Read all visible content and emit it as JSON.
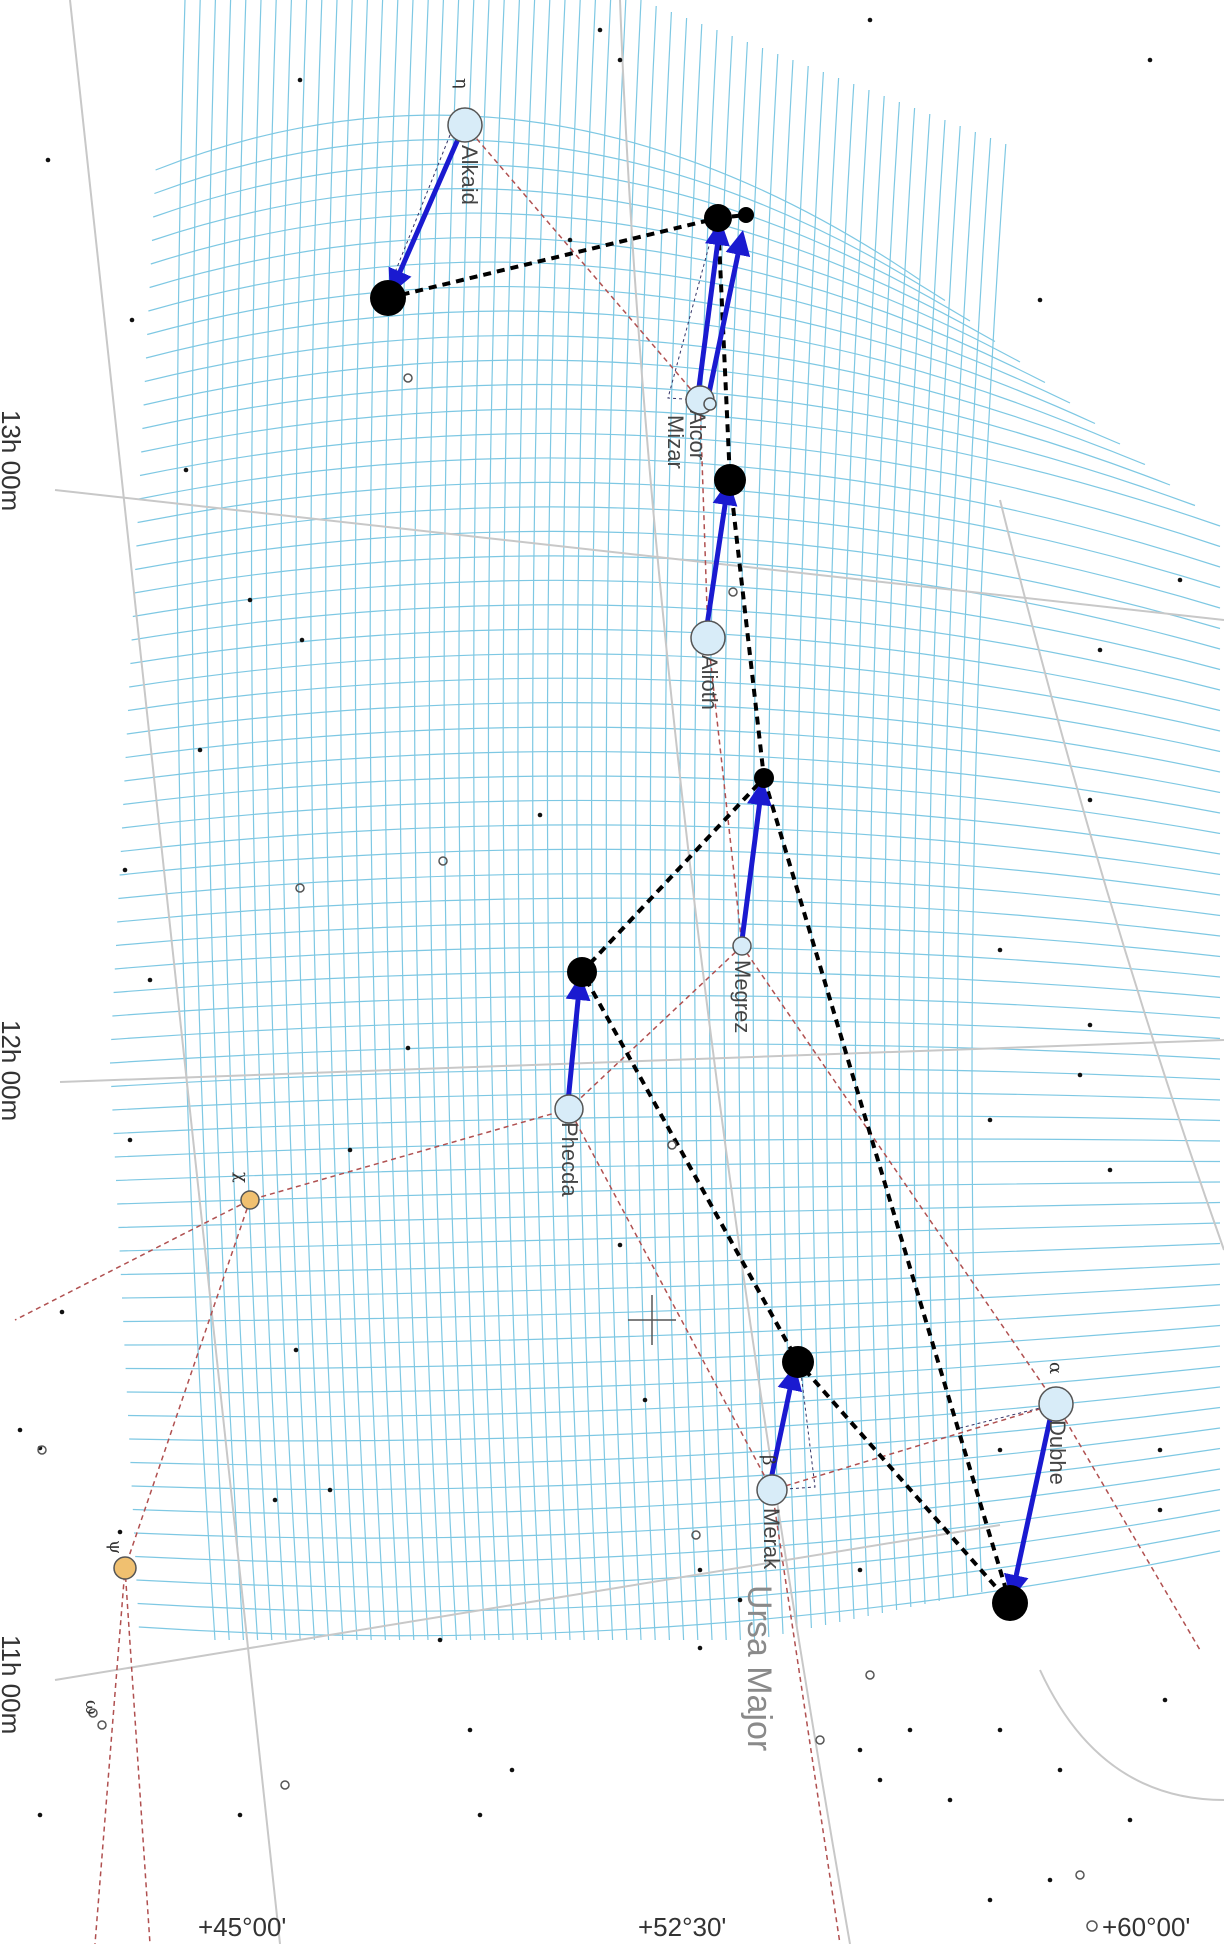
{
  "chart": {
    "constellation": "Ursa Major",
    "ra_labels": [
      "13h 00m",
      "12h 00m",
      "11h 00m"
    ],
    "dec_labels": [
      "+45°00'",
      "+52°30'",
      "+60°00'"
    ],
    "stars": [
      {
        "key": "alkaid",
        "name": "Alkaid",
        "greek": "η"
      },
      {
        "key": "mizar",
        "name": "Mizar",
        "greek": ""
      },
      {
        "key": "alcor",
        "name": "Alcor",
        "greek": ""
      },
      {
        "key": "alioth",
        "name": "Alioth",
        "greek": ""
      },
      {
        "key": "megrez",
        "name": "Megrez",
        "greek": ""
      },
      {
        "key": "phecda",
        "name": "Phecda",
        "greek": ""
      },
      {
        "key": "merak",
        "name": "Merak",
        "greek": "β"
      },
      {
        "key": "dubhe",
        "name": "Dubhe",
        "greek": "α"
      }
    ],
    "other_greek": [
      "χ",
      "ψ",
      "ω"
    ],
    "colors": {
      "grid": "#7ec8e3",
      "coord_lines": "#c8c8c8",
      "constellation_lines": "#b05050",
      "motion_arrows": "#1a1ad0",
      "future_shape": "#000000",
      "star_fill": "#d8ecf8",
      "orange_star": "#f0c070"
    }
  }
}
